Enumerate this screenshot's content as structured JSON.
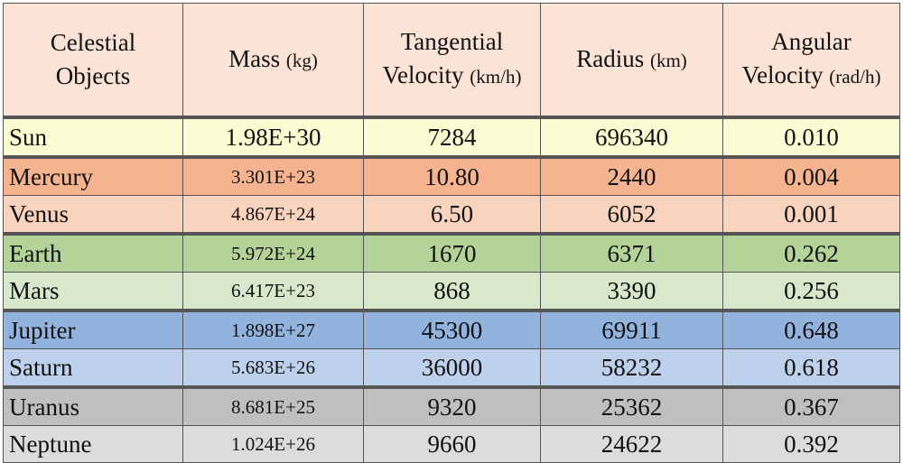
{
  "header": {
    "col1_line1": "Celestial",
    "col1_line2": "Objects",
    "col2_main": "Mass",
    "col2_unit": "(kg)",
    "col3_line1": "Tangential",
    "col3_line2": "Velocity",
    "col3_unit": "(km/h)",
    "col4_main": "Radius",
    "col4_unit": "(km)",
    "col5_line1": "Angular",
    "col5_line2": "Velocity",
    "col5_unit": "(rad/h)"
  },
  "rows": [
    {
      "name": "Sun",
      "mass": "1.98E+30",
      "tangential_velocity": "7284",
      "radius": "696340",
      "angular_velocity": "0.010",
      "color": "#fcfcd3"
    },
    {
      "name": "Mercury",
      "mass": "3.301E+23",
      "tangential_velocity": "10.80",
      "radius": "2440",
      "angular_velocity": "0.004",
      "color": "#f6b38f"
    },
    {
      "name": "Venus",
      "mass": "4.867E+24",
      "tangential_velocity": "6.50",
      "radius": "6052",
      "angular_velocity": "0.001",
      "color": "#fad3be"
    },
    {
      "name": "Earth",
      "mass": "5.972E+24",
      "tangential_velocity": "1670",
      "radius": "6371",
      "angular_velocity": "0.262",
      "color": "#b3d399"
    },
    {
      "name": "Mars",
      "mass": "6.417E+23",
      "tangential_velocity": "868",
      "radius": "3390",
      "angular_velocity": "0.256",
      "color": "#d8e8ca"
    },
    {
      "name": "Jupiter",
      "mass": "1.898E+27",
      "tangential_velocity": "45300",
      "radius": "69911",
      "angular_velocity": "0.648",
      "color": "#93b3df"
    },
    {
      "name": "Saturn",
      "mass": "5.683E+26",
      "tangential_velocity": "36000",
      "radius": "58232",
      "angular_velocity": "0.618",
      "color": "#bdd0ec"
    },
    {
      "name": "Uranus",
      "mass": "8.681E+25",
      "tangential_velocity": "9320",
      "radius": "25362",
      "angular_velocity": "0.367",
      "color": "#bfbfbf"
    },
    {
      "name": "Neptune",
      "mass": "1.024E+26",
      "tangential_velocity": "9660",
      "radius": "24622",
      "angular_velocity": "0.392",
      "color": "#dcdcdc"
    }
  ]
}
